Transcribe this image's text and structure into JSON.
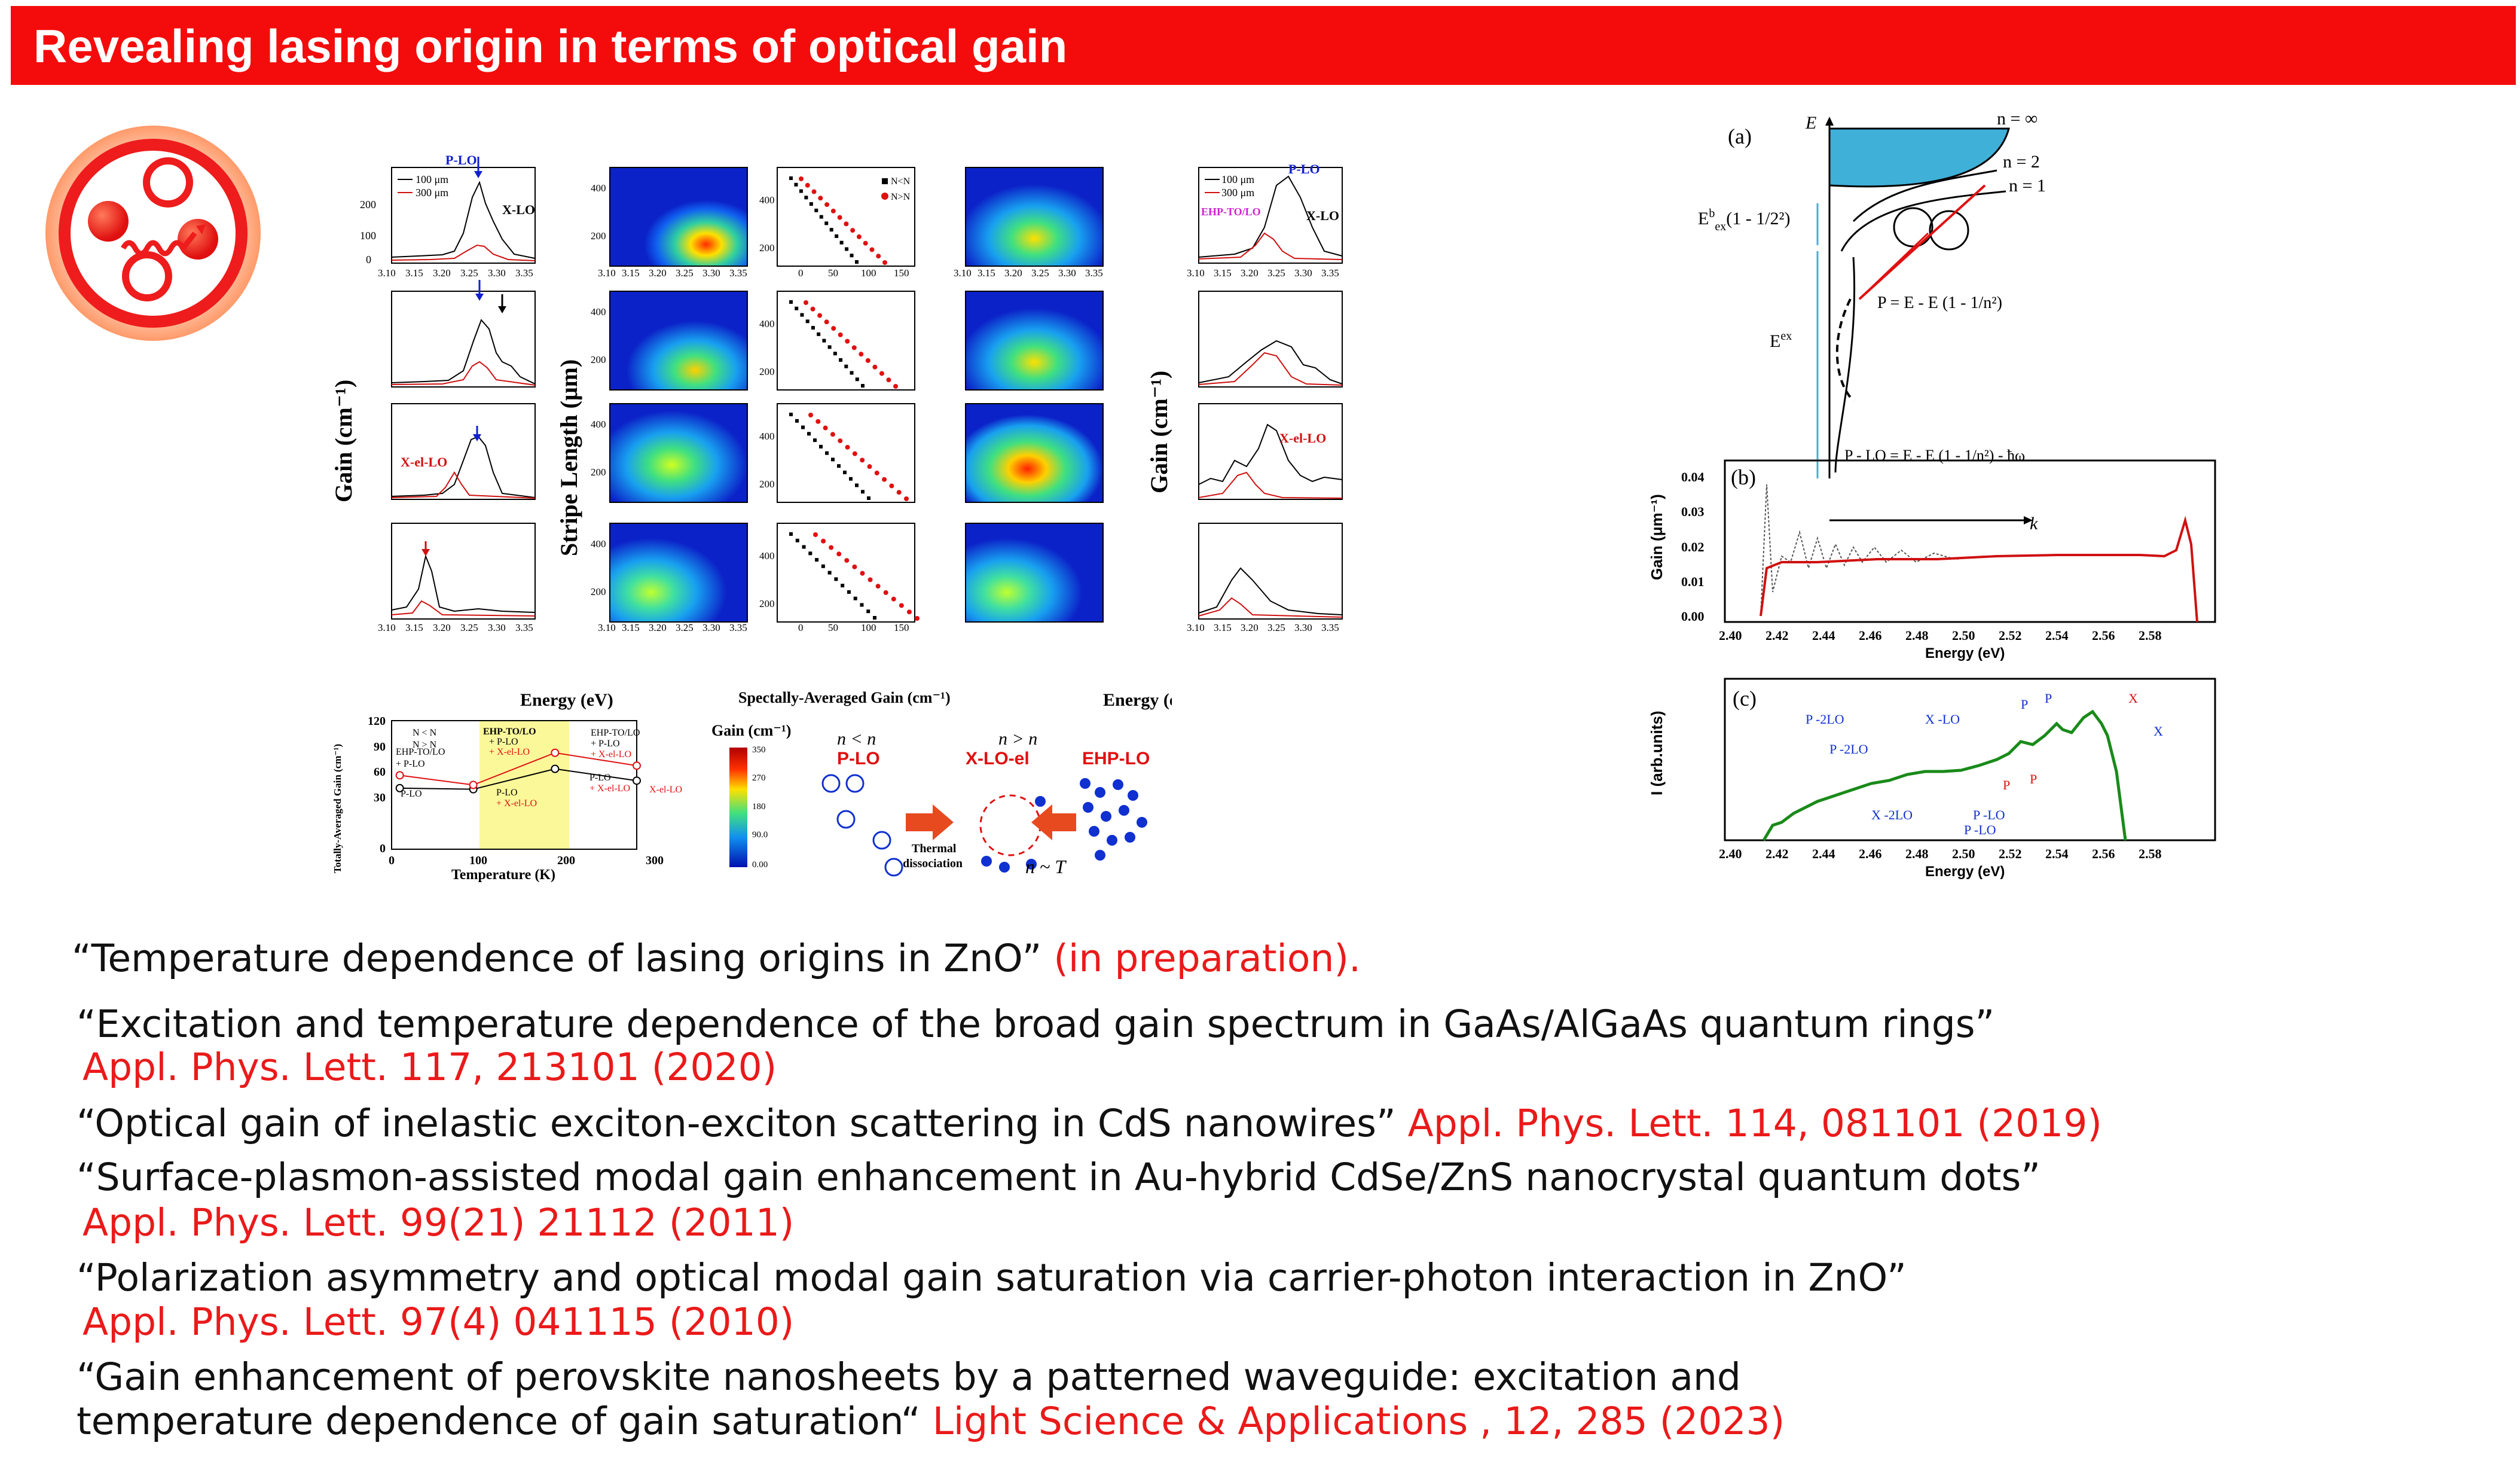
{
  "banner": {
    "title": "Revealing lasing origin in terms of optical gain"
  },
  "colors": {
    "banner": "#f40c0c",
    "cite": "#ea1a1a"
  },
  "left_figure": {
    "gain_panel_ylabel": "Gain (cm⁻¹)",
    "stripe_ylabel": "Stripe Length (μm)",
    "x_label_energy": "Energy (eV)",
    "x_label_spectral": "Spectally-Averaged Gain (cm⁻¹)",
    "x_ticks_energy": [
      "3.10",
      "3.15",
      "3.20",
      "3.25",
      "3.30",
      "3.35"
    ],
    "x_ticks_spectral": [
      "0",
      "50",
      "100",
      "150"
    ],
    "legend_100": "100 μm",
    "legend_300": "300 μm",
    "legend_nlt": "N<N",
    "legend_ngt": "N>N",
    "label_plo": "P-LO",
    "label_xlo": "X-LO",
    "label_xello": "X-el-LO",
    "label_xello2": "X-el-LO",
    "label_ehp_to_lo": "EHP-TO/LO",
    "gain_y_ticks": [
      "0",
      "100",
      "200"
    ],
    "stripe_y_ticks": [
      "200",
      "400"
    ],
    "temp_chart": {
      "ylabel": "Totally-Averaged Gain (cm⁻¹)",
      "xlabel": "Temperature (K)",
      "y_ticks": [
        "0",
        "30",
        "60",
        "90",
        "120"
      ],
      "x_ticks": [
        "0",
        "100",
        "200",
        "300"
      ],
      "legend_a": "N < N",
      "legend_b": "N > N",
      "ann_1": "EHP-TO/LO",
      "ann_2": "+ P-LO",
      "ann_3": "P-LO",
      "ann_4": "EHP-TO/LO",
      "ann_5": "+ P-LO",
      "ann_6": "+ X-el-LO",
      "ann_7": "P-LO",
      "ann_8": "+ X-el-LO",
      "ann_9": "EHP-TO/LO",
      "ann_10": "+ P-LO",
      "ann_11": "+ X-el-LO",
      "ann_12": "P-LO",
      "ann_13": "+ X-el-LO",
      "ann_14": "X-el-LO",
      "series_low": [
        [
          10,
          57
        ],
        [
          100,
          56
        ],
        [
          200,
          75
        ],
        [
          300,
          64
        ]
      ],
      "series_high": [
        [
          10,
          69
        ],
        [
          100,
          60
        ],
        [
          200,
          90
        ],
        [
          300,
          78
        ]
      ]
    },
    "colorbar": {
      "title": "Gain (cm⁻¹)",
      "ticks": [
        "350",
        "270",
        "180",
        "90.0",
        "0.00"
      ]
    },
    "schematic": {
      "plo": "P-LO",
      "xloel": "X-LO-el",
      "ehplo": "EHP-LO",
      "n_less": "n < n",
      "n_more": "n > n",
      "thermal": "Thermal",
      "dissociation": "dissociation",
      "mott": "n ~ T"
    }
  },
  "right_figure": {
    "panel_a": "(a)",
    "panel_b": "(b)",
    "panel_c": "(c)",
    "E": "E",
    "k": "k",
    "n_inf": "n = ∞",
    "n2": "n = 2",
    "n1": "n = 1",
    "Eex": "E",
    "eq_pn": "P = E - E (1 - 1/n²)",
    "eq_pnlo": "P - LO = E - E (1 - 1/n²) - ħω",
    "b_ylabel": "Gain (μm⁻¹)",
    "b_yticks": [
      "0.04",
      "0.03",
      "0.02",
      "0.01",
      "0.00"
    ],
    "c_ylabel": "I (arb.units)",
    "xticks": [
      "2.40",
      "2.42",
      "2.44",
      "2.46",
      "2.48",
      "2.50",
      "2.52",
      "2.54",
      "2.56",
      "2.58"
    ],
    "xlabel": "Energy (eV)",
    "c_labels": [
      "P -2LO",
      "P -2LO",
      "X -LO",
      "P",
      "P",
      "X",
      "X",
      "X -2LO",
      "P -LO",
      "P -LO",
      "P",
      "P"
    ]
  },
  "references": [
    {
      "text": "“Temperature dependence of lasing origins in ZnO” ",
      "cite": "(in preparation)."
    },
    {
      "text": "“Excitation and temperature dependence of the broad gain spectrum in GaAs/AlGaAs quantum rings”",
      "cite": "Appl. Phys. Lett. 117, 213101 (2020)"
    },
    {
      "text": "“Optical gain of inelastic exciton-exciton scattering in CdS nanowires” ",
      "cite": "Appl. Phys. Lett. 114, 081101 (2019)"
    },
    {
      "text": "“Surface-plasmon-assisted modal gain enhancement in Au-hybrid CdSe/ZnS nanocrystal quantum dots”",
      "cite": "Appl. Phys. Lett. 99(21) 21112 (2011)"
    },
    {
      "text": "“Polarization asymmetry and optical modal gain saturation via carrier-photon interaction in ZnO”",
      "cite": "Appl. Phys. Lett. 97(4) 041115 (2010)"
    },
    {
      "text": "“Gain enhancement of perovskite nanosheets by a patterned waveguide: excitation and",
      "text2": "temperature dependence of gain saturation“ ",
      "cite": "Light Science & Applications , 12, 285 (2023)"
    }
  ]
}
